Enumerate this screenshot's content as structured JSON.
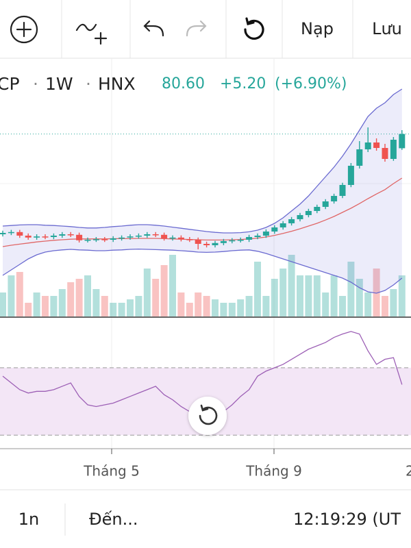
{
  "toolbar": {
    "deposit": "Nạp",
    "save": "Lưu"
  },
  "chart_data": {
    "type": "candlestick",
    "symbol": "CP",
    "separator": "·",
    "interval": "1W",
    "exchange": "HNX",
    "last_price": "80.60",
    "change": "+5.20",
    "change_pct": "(+6.90%)",
    "up_color": "#26a69a",
    "down_color": "#ef5350",
    "open": [
      44.0,
      44.5,
      44.8,
      43.5,
      42.8,
      43.2,
      43.0,
      43.5,
      44.0,
      43.8,
      41.8,
      42.0,
      42.2,
      42.0,
      42.5,
      42.8,
      43.2,
      43.5,
      44.0,
      43.8,
      42.5,
      42.8,
      42.2,
      42.0,
      40.5,
      40.0,
      40.8,
      41.5,
      41.8,
      42.0,
      43.0,
      43.5,
      45.0,
      46.5,
      48.0,
      49.5,
      51.0,
      52.5,
      54.0,
      56.0,
      58.0,
      62.0,
      69.0,
      75.0,
      77.5,
      75.5,
      71.5,
      75.4
    ],
    "high": [
      45.3,
      45.6,
      45.6,
      44.3,
      44.0,
      44.0,
      44.3,
      44.8,
      44.8,
      44.6,
      42.8,
      43.0,
      43.0,
      43.3,
      43.6,
      44.0,
      44.3,
      44.8,
      44.8,
      44.6,
      43.6,
      43.6,
      43.0,
      42.8,
      41.3,
      41.6,
      42.3,
      42.6,
      42.8,
      43.8,
      44.3,
      45.8,
      47.3,
      48.8,
      50.3,
      51.8,
      53.3,
      54.8,
      56.8,
      58.8,
      62.8,
      70.0,
      78.0,
      83.0,
      79.0,
      77.0,
      79.5,
      82.0
    ],
    "low": [
      43.2,
      43.7,
      42.7,
      42.0,
      42.0,
      42.2,
      42.2,
      42.7,
      43.0,
      41.0,
      41.0,
      41.2,
      41.2,
      41.2,
      41.7,
      42.0,
      42.4,
      42.7,
      43.0,
      41.7,
      41.7,
      41.4,
      41.2,
      38.5,
      39.2,
      39.2,
      40.0,
      40.7,
      41.0,
      41.2,
      42.2,
      42.7,
      44.2,
      45.7,
      47.2,
      48.7,
      50.2,
      51.7,
      53.2,
      55.2,
      57.2,
      61.2,
      68.0,
      74.0,
      74.5,
      70.5,
      70.8,
      74.8
    ],
    "close": [
      44.5,
      44.8,
      43.5,
      42.8,
      43.2,
      43.0,
      43.5,
      44.0,
      43.8,
      41.8,
      42.0,
      42.2,
      42.0,
      42.5,
      42.8,
      43.2,
      43.5,
      44.0,
      43.8,
      42.5,
      42.8,
      42.2,
      42.0,
      40.5,
      40.0,
      40.8,
      41.5,
      41.8,
      42.0,
      43.0,
      43.5,
      45.0,
      46.5,
      48.0,
      49.5,
      51.0,
      52.5,
      54.0,
      56.0,
      58.0,
      62.0,
      69.0,
      75.0,
      77.5,
      75.5,
      71.5,
      78.5,
      80.6
    ],
    "volume": [
      35,
      60,
      65,
      20,
      35,
      30,
      30,
      40,
      50,
      55,
      60,
      40,
      30,
      20,
      20,
      25,
      30,
      70,
      55,
      75,
      90,
      35,
      20,
      35,
      30,
      25,
      20,
      20,
      25,
      30,
      80,
      30,
      55,
      70,
      90,
      60,
      60,
      60,
      35,
      60,
      30,
      80,
      55,
      35,
      70,
      30,
      40,
      60
    ],
    "bb_upper": [
      47,
      47.2,
      47.4,
      47.5,
      47.5,
      47.3,
      47.2,
      47,
      46.8,
      46.5,
      46.3,
      46.3,
      46.5,
      46.8,
      47,
      47.3,
      47.5,
      47.5,
      47.3,
      47,
      46.6,
      46.2,
      45.8,
      45.4,
      45,
      44.7,
      44.5,
      44.5,
      44.6,
      44.9,
      45.5,
      46.5,
      48,
      50,
      52.5,
      55,
      58,
      61.5,
      65,
      68.5,
      72.5,
      77,
      82,
      87,
      90,
      92,
      95,
      97
    ],
    "bb_lower": [
      29,
      31,
      33,
      35,
      36.5,
      37.5,
      38,
      38.3,
      38.5,
      38.3,
      38.2,
      38,
      38,
      38.2,
      38.3,
      38.5,
      38.6,
      38.5,
      38.4,
      38.3,
      38.2,
      38,
      37.8,
      37.5,
      37.4,
      37.5,
      37.7,
      38,
      38.2,
      38.3,
      37.8,
      37,
      36,
      35,
      34,
      33,
      32,
      31,
      30,
      29,
      28,
      26.5,
      24.5,
      23,
      22.5,
      23.5,
      25.5,
      28
    ],
    "ma": [
      39.5,
      40,
      40.4,
      40.8,
      41.2,
      41.5,
      41.8,
      42,
      42.2,
      42.3,
      42.3,
      42.3,
      42.3,
      42.4,
      42.4,
      42.4,
      42.5,
      42.5,
      42.5,
      42.4,
      42.3,
      42.2,
      42.1,
      42,
      41.9,
      41.9,
      41.9,
      42,
      42.1,
      42.3,
      42.6,
      43,
      43.6,
      44.3,
      45.1,
      46,
      47,
      48,
      49.2,
      50.5,
      52,
      53.5,
      55.2,
      57,
      58.7,
      60.3,
      62.5,
      64.5
    ],
    "rsi": [
      65,
      61,
      57,
      55,
      56,
      56,
      57,
      59,
      61,
      53,
      48,
      47,
      48,
      49,
      51,
      53,
      55,
      57,
      59,
      54,
      51,
      47,
      44,
      39,
      40,
      42,
      44,
      48,
      53,
      57,
      65,
      68,
      70,
      72,
      75,
      78,
      81,
      83,
      85,
      88,
      90,
      91.5,
      90,
      80,
      72,
      75,
      76,
      60
    ],
    "ylim": [
      15,
      102
    ],
    "volume_ylim": [
      0,
      100
    ],
    "rsi_ylim": [
      22,
      100
    ],
    "rsi_bands": [
      30,
      70
    ],
    "x_labels": [
      "Tháng 5",
      "Tháng 9",
      "2"
    ]
  },
  "footer": {
    "range": "1n",
    "goto": "Đến...",
    "clock": "12:19:29 (UT"
  }
}
